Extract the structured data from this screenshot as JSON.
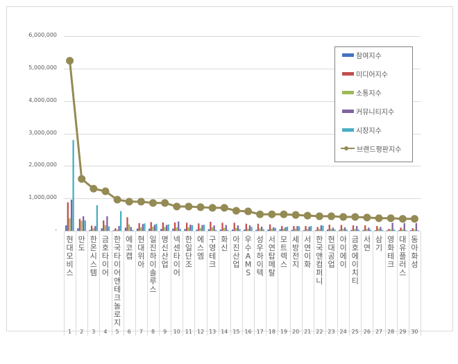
{
  "chart_data": {
    "type": "bar",
    "title": "",
    "xlabel": "",
    "ylabel": "",
    "ylim": [
      0,
      6000000
    ],
    "yticks": [
      "-",
      "1,000,000",
      "2,000,000",
      "3,000,000",
      "4,000,000",
      "5,000,000",
      "6,000,000"
    ],
    "grid": true,
    "legend_position": "upper-right-inside",
    "x_numbers": [
      "1",
      "2",
      "3",
      "4",
      "5",
      "6",
      "7",
      "8",
      "9",
      "10",
      "11",
      "12",
      "13",
      "14",
      "15",
      "16",
      "17",
      "18",
      "19",
      "20",
      "21",
      "22",
      "23",
      "24",
      "25",
      "26",
      "27",
      "28",
      "29",
      "30"
    ],
    "categories": [
      "현대모비스",
      "만도",
      "한온시스템",
      "금호타이어",
      "한국타이어앤테크놀로지",
      "에코캡",
      "현대위아",
      "일진하이솔루스",
      "명신산업",
      "넥센타이어",
      "한일단조",
      "에스엠",
      "구영테크",
      "화신",
      "아진산업",
      "우수AMS",
      "성우하이텍",
      "서연탑메탈",
      "모트렉스",
      "세방전지",
      "서연이화",
      "한국앤컴퍼니",
      "현대공업",
      "아이에이",
      "금호에이치티",
      "서연",
      "삼기",
      "영화테크",
      "대유플러스",
      "동아화성"
    ],
    "series": [
      {
        "name": "참여지수",
        "type": "bar",
        "color": "#4472c4",
        "values": [
          170000,
          80000,
          30000,
          80000,
          20000,
          100000,
          70000,
          70000,
          60000,
          70000,
          60000,
          40000,
          50000,
          40000,
          40000,
          40000,
          30000,
          40000,
          50000,
          30000,
          20000,
          20000,
          40000,
          30000,
          30000,
          30000,
          20000,
          20000,
          20000,
          20000
        ]
      },
      {
        "name": "미디어지수",
        "type": "bar",
        "color": "#c0504d",
        "values": [
          880000,
          370000,
          160000,
          320000,
          80000,
          420000,
          240000,
          270000,
          260000,
          260000,
          250000,
          230000,
          280000,
          250000,
          250000,
          220000,
          220000,
          200000,
          150000,
          150000,
          150000,
          120000,
          190000,
          180000,
          170000,
          170000,
          150000,
          60000,
          100000,
          80000
        ]
      },
      {
        "name": "소통지수",
        "type": "bar",
        "color": "#9bbb59",
        "values": [
          390000,
          310000,
          80000,
          180000,
          40000,
          200000,
          110000,
          130000,
          120000,
          110000,
          110000,
          90000,
          110000,
          90000,
          90000,
          70000,
          80000,
          70000,
          70000,
          70000,
          60000,
          60000,
          60000,
          70000,
          60000,
          60000,
          70000,
          50000,
          50000,
          40000
        ]
      },
      {
        "name": "커뮤니티지수",
        "type": "bar",
        "color": "#8064a2",
        "values": [
          960000,
          450000,
          150000,
          450000,
          150000,
          120000,
          210000,
          190000,
          180000,
          290000,
          190000,
          180000,
          170000,
          180000,
          170000,
          170000,
          130000,
          110000,
          110000,
          150000,
          130000,
          170000,
          100000,
          110000,
          150000,
          100000,
          120000,
          250000,
          240000,
          240000
        ]
      },
      {
        "name": "시장지수",
        "type": "bar",
        "color": "#4bacc6",
        "values": [
          2800000,
          320000,
          790000,
          140000,
          610000,
          30000,
          230000,
          220000,
          200000,
          60000,
          180000,
          190000,
          30000,
          30000,
          60000,
          120000,
          50000,
          90000,
          130000,
          140000,
          150000,
          160000,
          40000,
          40000,
          40000,
          40000,
          30000,
          40000,
          20000,
          20000
        ]
      },
      {
        "name": "브랜드평판지수",
        "type": "line",
        "color": "#948a54",
        "values": [
          5240000,
          1600000,
          1300000,
          1220000,
          960000,
          900000,
          900000,
          860000,
          860000,
          750000,
          750000,
          730000,
          710000,
          710000,
          620000,
          600000,
          510000,
          510000,
          510000,
          490000,
          470000,
          450000,
          450000,
          430000,
          430000,
          410000,
          390000,
          390000,
          370000,
          370000
        ]
      }
    ]
  },
  "legend": {
    "items": [
      {
        "label": "참여지수",
        "color": "#4472c4",
        "kind": "bar"
      },
      {
        "label": "미디어지수",
        "color": "#c0504d",
        "kind": "bar"
      },
      {
        "label": "소통지수",
        "color": "#9bbb59",
        "kind": "bar"
      },
      {
        "label": "커뮤니티지수",
        "color": "#8064a2",
        "kind": "bar"
      },
      {
        "label": "시장지수",
        "color": "#4bacc6",
        "kind": "bar"
      },
      {
        "label": "브랜드평판지수",
        "color": "#948a54",
        "kind": "line"
      }
    ]
  }
}
